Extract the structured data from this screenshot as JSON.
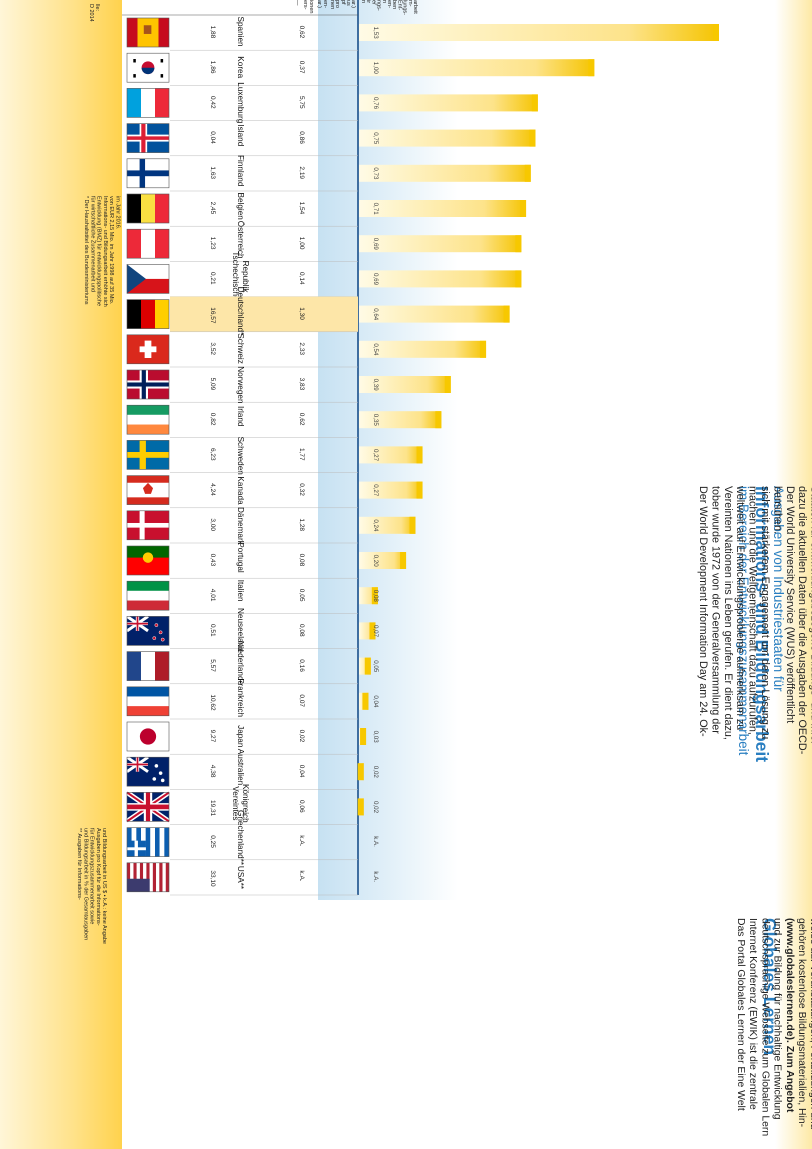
{
  "header": {
    "title_small": "Ausgaben von Industriestaaten für",
    "title_big": "Informations- und Bildungsarbeit",
    "title_sub": "im Bereich der Entwicklungszusammenarbeit"
  },
  "intro_text": [
    "Der World Development Information Day am 24. Ok-",
    "tober wurde 1972 von der Generalversammlung der",
    "Vereinten Nationen ins Leben gerufen. Er dient dazu,",
    "weltweit auf Entwicklungsprobleme aufmerksam zu",
    "machen und die Weltgemeinschaft dazu aufzurufen,",
    "sich mit stärkerem Engagement um deren Lösung zu",
    "bemühen.",
    "Der World University Service (WUS) veröffentlicht",
    "dazu die aktuellen Daten über die Ausgaben der OECD-",
    "Staaten für entwicklungsbezogene Bildungs- und Infor-",
    "mationsarbeit.",
    "Die Zahlen machen deutlich, dass in Deutschland –",
    "wie in vielen anderen Ländern auch – der Anteil der",
    "Ausgaben in diesem Bereich sehr gering ist und weiter",
    "ausgebaut werden muss. Er sollte laut Empfehlung des",
    "UNDP (United Nations Development Programme)",
    "3% der Gesamtausgaben für Entwicklungszusammen-",
    "arbeit betragen."
  ],
  "globales": {
    "title": "Globales Lernen",
    "lines": [
      "Das Portal Globales Lernen der Eine Welt",
      "Internet Konferenz (EWIK) ist die zentrale",
      "deutschsprachige Webseite zum Globalen Lern",
      "und zur Bildung für nachhaltige Entwicklung",
      "(www.globaleslernen.de). Zum Angebot",
      "gehören kostenlose Bildungsmaterialien, Hin-",
      "weise auf Veranstaltungen, Fortbildungen und",
      "Methodenhandbücher sowie Informationen zu",
      "Referentenvermittlung, Nord-Süd-Partnerscha",
      "und Schulprofilbildung u. v. m. Die Redaktion d",
      "Portals liegt beim WUS.",
      "",
      "Das Projekt Grenzenlos entwickelt Lehrkon",
      "ration zu Themen des Globalen Lernens zwisc",
      "internationalen Studierenden und Lehrkräften",
      "berufsbildenden Schulen. Die Studierenden au",
      "Afrika, Asien und Lateinamerika werden zunäc",
      "methodisch-didaktisch qualifiziert und vermitt",
      "dann als Lern- und Lehrpartner-innen Theme",
      "des Globalen Lernens an Jugendliche in berufs",
      "denden Schulen (www.wusgermany.de/a",
      "auslanderstudium/grenzenlos).",
      "",
      "Die Informationsstelle Bildungsauftrag Nord-S",
      "koordiniert die Global Education Week innert",
      "Deutschlands (www.globaleducationweek",
      "Die europaweite Woche hat zum Ziel, Theme",
      "Globalen Lernens in die breite Öffentlichkeit z",
      "tragen. Außerdem betreut die Informationsste",
      "die 4-sprachige Online-Datenbank ENGLOB z",
      "europäischen Organisationen des Globalen Le",
      "nens, eine wertvolle Hilfe bei Recherchearbeit",
      "(www.globaleducation.de).",
      "",
      "Das Portal „Deutsche Länder in der Entwickl",
      "politik\" ist das zentrale Informationsportal zu",
      "Aktivitäten der 16 Deutschen Länder im Berei",
      "Entwicklungspolitik und entwicklungspolitisch",
      "Bildungs- und Informationsarbeit (www.",
      "entwicklungspolitik-deutsche-länder."
    ]
  },
  "footnotes": {
    "top_fragment": [
      "lle:",
      "D 2014"
    ],
    "note1": [
      "* Der Haushaltstitel des Bundesministeriums",
      "für wirtschaftliche Zusammenarbeit und",
      "Entwicklung (BMZ) für entwicklungspolitische",
      "Informations- und Bildungsarbeit erhöhte sich",
      "von EUR 2,15 Mio. im Jahr 1998 auf 35 Mio.",
      "im Jahr 2016."
    ],
    "note2": [
      "** Ausgaben für Informations-",
      "und Bildungsarbeit in % der Gesamtausgaben",
      "für Entwicklungszusammenarbeit sowie",
      "Ausgaben pro Kopf für die Informations-",
      "und Bildungsarbeit in US $ • k.A.: keine Angabe"
    ],
    "header_fragments": [
      "—",
      "ers-",
      "ionen",
      "ar.)",
      "en-",
      "nen",
      "pro",
      "pf",
      "us",
      "ar.)"
    ],
    "axis_fragments": [
      "n",
      "ir",
      "er",
      "ngs-",
      "n",
      "en-",
      "ben",
      "Ent-",
      "lungs-",
      "m-",
      "arbeit"
    ]
  },
  "chart_data": {
    "type": "bar",
    "orientation": "horizontal",
    "title": "Ausgaben von Industriestaaten für Informations- und Bildungsarbeit im Bereich der Entwicklungszusammenarbeit",
    "categories": [
      "Spanien",
      "Korea",
      "Luxemburg",
      "Island",
      "Finnland",
      "Belgien",
      "Österreich",
      "Tschechische Republik",
      "Deutschland*",
      "Schweiz",
      "Norwegen",
      "Irland",
      "Schweden",
      "Kanada",
      "Dänemark",
      "Portugal",
      "Italien",
      "Neuseeland",
      "Niederlande",
      "Frankreich",
      "Japan",
      "Australien",
      "Vereintes Königreich",
      "Griechenland**",
      "USA**"
    ],
    "labels": [
      "Spanien",
      "Korea",
      "Luxemburg",
      "Island",
      "Finnland",
      "Belgien",
      "Österreich",
      "Tschechische\nRepublik",
      "Deutschland*",
      "Schweiz",
      "Norwegen",
      "Irland",
      "Schweden",
      "Kanada",
      "Dänemark",
      "Portugal",
      "Italien",
      "Neuseeland",
      "Niederlande",
      "Frankreich",
      "Japan",
      "Australien",
      "Vereintes\nKönigreich",
      "Griechenland**",
      "USA**"
    ],
    "col_a_values": [
      "1,88",
      "1,86",
      "0,42",
      "0,04",
      "1,63",
      "2,45",
      "1,23",
      "0,21",
      "16,57",
      "3,52",
      "5,09",
      "0,82",
      "6,23",
      "4,24",
      "3,00",
      "0,43",
      "4,01",
      "0,51",
      "5,57",
      "10,62",
      "9,27",
      "4,38",
      "19,31",
      "0,25",
      "33,10"
    ],
    "col_b_values": [
      "0,62",
      "0,37",
      "5,75",
      "0,86",
      "2,19",
      "1,54",
      "1,00",
      "0,14",
      "1,30",
      "2,33",
      "3,83",
      "0,62",
      "1,77",
      "0,32",
      "1,28",
      "0,08",
      "0,05",
      "0,08",
      "0,16",
      "0,07",
      "0,02",
      "0,04",
      "0,06",
      "k.A.",
      "k.A."
    ],
    "bar_labels": [
      "1,53",
      "1,00",
      "0,76",
      "0,75",
      "0,73",
      "0,71",
      "0,69",
      "0,69",
      "0,64",
      "0,54",
      "0,39",
      "0,35",
      "0,27",
      "0,27",
      "0,24",
      "0,20",
      "0,08",
      "0,07",
      "0,05",
      "0,04",
      "0,03",
      "0,02",
      "0,02",
      "k.A.",
      "k.A."
    ],
    "values": [
      1.53,
      1.0,
      0.76,
      0.75,
      0.73,
      0.71,
      0.69,
      0.69,
      0.64,
      0.54,
      0.39,
      0.35,
      0.27,
      0.27,
      0.24,
      0.2,
      0.08,
      0.07,
      0.05,
      0.04,
      0.03,
      0.02,
      0.02,
      null,
      null
    ],
    "xlim": [
      0,
      1.6
    ],
    "highlight": "Deutschland*",
    "flags": [
      "spain",
      "korea",
      "luxembourg",
      "iceland",
      "finland",
      "belgium",
      "austria",
      "czech",
      "germany",
      "switzerland",
      "norway",
      "ireland",
      "sweden",
      "canada",
      "denmark",
      "portugal",
      "italy",
      "newzealand",
      "netherlands",
      "france",
      "japan",
      "australia",
      "uk",
      "greece",
      "usa"
    ],
    "colors": {
      "bar_light": "#fff8d0",
      "bar_dark": "#f7c800",
      "accent_blue": "#1a6fb5",
      "side_yellow": "#ffd96a",
      "highlight": "#fde6a8"
    }
  }
}
